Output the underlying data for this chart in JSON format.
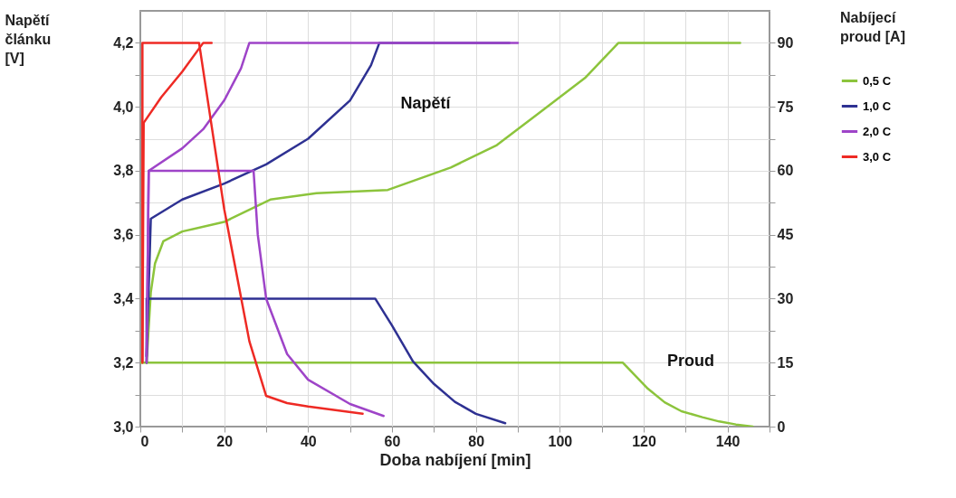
{
  "chart_data": {
    "type": "line",
    "xlabel": "Doba nabíjení [min]",
    "ylabel": "Napětí článku [V]",
    "legend_title": "Nabíjecí proud [A]",
    "xlim": [
      0,
      150
    ],
    "xticks": [
      0,
      {
        "value": 10,
        "label": null
      },
      20,
      {
        "value": 30,
        "label": null
      },
      40,
      {
        "value": 50,
        "label": null
      },
      60,
      {
        "value": 70,
        "label": null
      },
      80,
      {
        "value": 90,
        "label": null
      },
      100,
      {
        "value": 110,
        "label": null
      },
      120,
      {
        "value": 130,
        "label": null
      },
      140,
      {
        "value": 150,
        "label": null
      }
    ],
    "ylim": [
      3.0,
      4.3
    ],
    "yticks": [
      {
        "value": 3.0,
        "label": "3,0"
      },
      {
        "value": 3.1,
        "label": null
      },
      {
        "value": 3.2,
        "label": "3,2"
      },
      {
        "value": 3.3,
        "label": null
      },
      {
        "value": 3.4,
        "label": "3,4"
      },
      {
        "value": 3.5,
        "label": null
      },
      {
        "value": 3.6,
        "label": "3,6"
      },
      {
        "value": 3.7,
        "label": null
      },
      {
        "value": 3.8,
        "label": "3,8"
      },
      {
        "value": 3.9,
        "label": null
      },
      {
        "value": 4.0,
        "label": "4,0"
      },
      {
        "value": 4.1,
        "label": null
      },
      {
        "value": 4.2,
        "label": "4,2"
      }
    ],
    "y2lim": [
      0,
      97.5
    ],
    "y2ticks": [
      0,
      {
        "value": 7.5,
        "label": null
      },
      15,
      {
        "value": 22.5,
        "label": null
      },
      30,
      {
        "value": 37.5,
        "label": null
      },
      45,
      {
        "value": 52.5,
        "label": null
      },
      60,
      {
        "value": 67.5,
        "label": null
      },
      75,
      {
        "value": 82.5,
        "label": null
      },
      90
    ],
    "grid": true,
    "legend": "right",
    "marker": "none",
    "line_style": "solid",
    "annotations": [
      "Napětí",
      "Proud"
    ],
    "series": [
      {
        "name": "0,5 C",
        "color": "#8cc43c",
        "x": [
          1.5,
          2.5,
          3.5,
          5.5,
          10,
          20,
          31,
          42,
          59,
          74,
          85,
          95,
          106,
          114,
          143
        ],
        "values": [
          3.2,
          3.42,
          3.51,
          3.58,
          3.61,
          3.64,
          3.71,
          3.73,
          3.74,
          3.81,
          3.88,
          3.98,
          4.09,
          4.2,
          4.2
        ]
      },
      {
        "name": "1,0 C",
        "color": "#2e3192",
        "x": [
          1.5,
          2.5,
          10,
          20,
          30,
          40,
          50,
          55,
          57,
          88
        ],
        "values": [
          3.22,
          3.65,
          3.71,
          3.76,
          3.82,
          3.9,
          4.02,
          4.13,
          4.2,
          4.2
        ]
      },
      {
        "name": "2,0 C",
        "color": "#9e44c8",
        "x": [
          1.5,
          2,
          10,
          15,
          20,
          24,
          26,
          90
        ],
        "values": [
          3.22,
          3.8,
          3.87,
          3.93,
          4.02,
          4.12,
          4.2,
          4.2
        ]
      },
      {
        "name": "3,0 C",
        "color": "#ee2a24",
        "x": [
          0.5,
          0.8,
          5,
          10,
          15,
          17
        ],
        "values": [
          3.2,
          3.95,
          4.03,
          4.11,
          4.2,
          4.2
        ]
      },
      {
        "color": "#8cc43c",
        "axis": "y2",
        "x": [
          0,
          115,
          121,
          125,
          129,
          134,
          138,
          142,
          146
        ],
        "values": [
          15,
          15,
          8.9,
          5.7,
          3.6,
          2.2,
          1.2,
          0.5,
          0
        ]
      },
      {
        "color": "#2e3192",
        "axis": "y2",
        "x": [
          1.5,
          1.5,
          56,
          60,
          65,
          70,
          75,
          80,
          87
        ],
        "values": [
          15,
          30,
          30,
          23.7,
          15.3,
          10,
          5.8,
          3,
          0.8
        ]
      },
      {
        "color": "#9e44c8",
        "axis": "y2",
        "x": [
          1.5,
          2,
          27,
          28,
          30,
          35,
          40,
          50,
          58
        ],
        "values": [
          15,
          60,
          60,
          45,
          30,
          17,
          11,
          5.3,
          2.5
        ]
      },
      {
        "color": "#ee2a24",
        "axis": "y2",
        "x": [
          0.5,
          0.5,
          14,
          20,
          26,
          30,
          35,
          40,
          53
        ],
        "values": [
          15,
          90,
          90,
          51,
          20,
          7.2,
          5.5,
          4.7,
          3
        ]
      }
    ]
  }
}
